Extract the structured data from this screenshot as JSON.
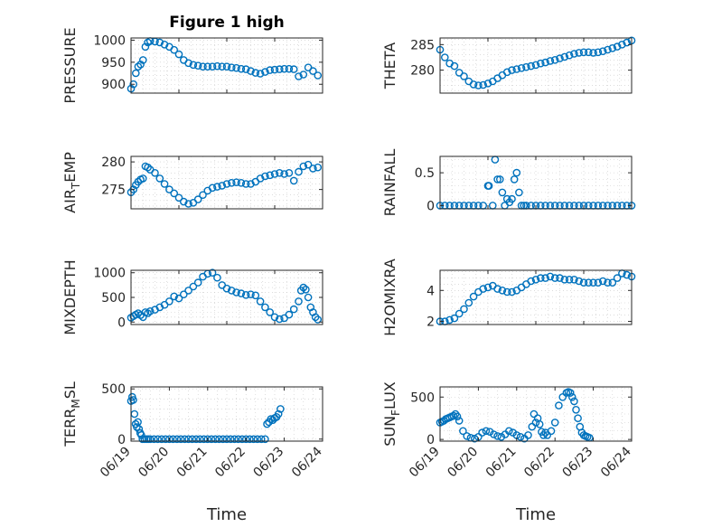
{
  "figure_title": "Figure 1 high",
  "colors": {
    "marker": "#0072BD",
    "axis": "#262626",
    "grid": "#c8c8c8"
  },
  "chart_data": [
    {
      "type": "scatter",
      "id": "pressure",
      "ylabel": "PRESSURE",
      "ylim": [
        880,
        1005
      ],
      "yticks": [
        900,
        950,
        1000
      ],
      "ytick_labels": [
        "900",
        "950",
        "1000"
      ],
      "xlim": [
        "06/19",
        "06/23"
      ],
      "xticks": [],
      "xlabel": "",
      "x": [
        19.0,
        19.05,
        19.1,
        19.15,
        19.2,
        19.25,
        19.3,
        19.35,
        19.4,
        19.5,
        19.6,
        19.7,
        19.8,
        19.9,
        20.0,
        20.1,
        20.2,
        20.3,
        20.4,
        20.5,
        20.6,
        20.7,
        20.8,
        20.9,
        21.0,
        21.1,
        21.2,
        21.3,
        21.4,
        21.5,
        21.6,
        21.7,
        21.8,
        21.9,
        22.0,
        22.1,
        22.2,
        22.3,
        22.4,
        22.5,
        22.6,
        22.7,
        22.8,
        22.9
      ],
      "y": [
        890,
        900,
        925,
        940,
        945,
        955,
        985,
        995,
        998,
        997,
        995,
        990,
        985,
        978,
        968,
        955,
        948,
        944,
        942,
        940,
        940,
        940,
        941,
        940,
        940,
        938,
        937,
        935,
        934,
        930,
        926,
        924,
        928,
        932,
        933,
        934,
        935,
        935,
        934,
        918,
        922,
        938,
        930,
        920
      ]
    },
    {
      "type": "scatter",
      "id": "theta",
      "ylabel": "THETA",
      "ylim": [
        275.5,
        286.3
      ],
      "yticks": [
        280,
        285
      ],
      "ytick_labels": [
        "280",
        "285"
      ],
      "xlim": [
        "06/19",
        "06/23"
      ],
      "xticks": [],
      "xlabel": "",
      "x": [
        19.0,
        19.1,
        19.2,
        19.3,
        19.4,
        19.5,
        19.6,
        19.7,
        19.8,
        19.9,
        20.0,
        20.1,
        20.2,
        20.3,
        20.4,
        20.5,
        20.6,
        20.7,
        20.8,
        20.9,
        21.0,
        21.1,
        21.2,
        21.3,
        21.4,
        21.5,
        21.6,
        21.7,
        21.8,
        21.9,
        22.0,
        22.1,
        22.2,
        22.3,
        22.4,
        22.5,
        22.6,
        22.7,
        22.8,
        22.9,
        23.0
      ],
      "y": [
        284,
        282.5,
        281.3,
        280.8,
        279.5,
        278.8,
        277.8,
        277.2,
        277,
        277.1,
        277.4,
        277.8,
        278.4,
        279,
        279.6,
        280,
        280.2,
        280.4,
        280.6,
        280.8,
        281,
        281.3,
        281.5,
        281.8,
        282,
        282.3,
        282.6,
        282.9,
        283.2,
        283.4,
        283.5,
        283.5,
        283.4,
        283.5,
        283.7,
        284,
        284.3,
        284.6,
        285,
        285.4,
        285.8
      ]
    },
    {
      "type": "scatter",
      "id": "air_temp",
      "ylabel": "AIR_TEMP",
      "ylim": [
        271.5,
        281
      ],
      "yticks": [
        275,
        280
      ],
      "ytick_labels": [
        "275",
        "280"
      ],
      "xlim": [
        "06/19",
        "06/23"
      ],
      "xticks": [],
      "xlabel": "",
      "x": [
        19.0,
        19.05,
        19.1,
        19.15,
        19.2,
        19.25,
        19.3,
        19.35,
        19.4,
        19.5,
        19.6,
        19.7,
        19.8,
        19.9,
        20.0,
        20.1,
        20.2,
        20.3,
        20.4,
        20.5,
        20.6,
        20.7,
        20.8,
        20.9,
        21.0,
        21.1,
        21.2,
        21.3,
        21.4,
        21.5,
        21.6,
        21.7,
        21.8,
        21.9,
        22.0,
        22.1,
        22.2,
        22.3,
        22.4,
        22.5,
        22.6,
        22.7,
        22.8,
        22.9
      ],
      "y": [
        274.5,
        275,
        275.8,
        276.4,
        276.8,
        277,
        279.2,
        279,
        278.6,
        278,
        277,
        276,
        275,
        274.3,
        273.5,
        272.8,
        272.4,
        272.6,
        273.2,
        274,
        274.8,
        275.3,
        275.5,
        275.7,
        276,
        276.2,
        276.3,
        276.2,
        276,
        276,
        276.4,
        277,
        277.4,
        277.6,
        277.8,
        278,
        277.8,
        278,
        276.6,
        278.2,
        279.2,
        279.5,
        278.8,
        279
      ]
    },
    {
      "type": "scatter",
      "id": "rainfall",
      "ylabel": "RAINFALL",
      "ylim": [
        -0.05,
        0.75
      ],
      "yticks": [
        0,
        0.5
      ],
      "ytick_labels": [
        "0",
        "0.5"
      ],
      "xlim": [
        "06/19",
        "06/23"
      ],
      "xticks": [],
      "xlabel": "",
      "x": [
        19.0,
        19.1,
        19.2,
        19.3,
        19.4,
        19.5,
        19.6,
        19.7,
        19.8,
        19.9,
        20.0,
        20.02,
        20.1,
        20.15,
        20.2,
        20.25,
        20.3,
        20.35,
        20.4,
        20.45,
        20.5,
        20.55,
        20.6,
        20.65,
        20.7,
        20.75,
        20.8,
        20.9,
        21.0,
        21.1,
        21.2,
        21.3,
        21.4,
        21.5,
        21.6,
        21.7,
        21.8,
        21.9,
        22.0,
        22.1,
        22.2,
        22.3,
        22.4,
        22.5,
        22.6,
        22.7,
        22.8,
        22.9,
        23.0
      ],
      "y": [
        0,
        0,
        0,
        0,
        0,
        0,
        0,
        0,
        0,
        0,
        0.3,
        0.3,
        0,
        0.7,
        0.4,
        0.4,
        0.2,
        0,
        0.1,
        0.05,
        0.1,
        0.4,
        0.5,
        0.2,
        0,
        0,
        0,
        0,
        0,
        0,
        0,
        0,
        0,
        0,
        0,
        0,
        0,
        0,
        0,
        0,
        0,
        0,
        0,
        0,
        0,
        0,
        0,
        0,
        0
      ]
    },
    {
      "type": "scatter",
      "id": "mixdepth",
      "ylabel": "MIXDEPTH",
      "ylim": [
        -50,
        1050
      ],
      "yticks": [
        0,
        500,
        1000
      ],
      "ytick_labels": [
        "0",
        "500",
        "1000"
      ],
      "xlim": [
        "06/19",
        "06/23"
      ],
      "xticks": [],
      "xlabel": "",
      "x": [
        19.0,
        19.05,
        19.1,
        19.15,
        19.2,
        19.25,
        19.3,
        19.35,
        19.4,
        19.5,
        19.6,
        19.7,
        19.8,
        19.9,
        20.0,
        20.1,
        20.2,
        20.3,
        20.4,
        20.5,
        20.6,
        20.7,
        20.8,
        20.9,
        21.0,
        21.1,
        21.2,
        21.3,
        21.4,
        21.5,
        21.6,
        21.7,
        21.8,
        21.9,
        22.0,
        22.1,
        22.2,
        22.3,
        22.4,
        22.5,
        22.55,
        22.6,
        22.65,
        22.7,
        22.75,
        22.8,
        22.85,
        22.9
      ],
      "y": [
        90,
        120,
        150,
        180,
        140,
        100,
        200,
        180,
        220,
        250,
        300,
        350,
        420,
        520,
        480,
        560,
        640,
        720,
        800,
        920,
        980,
        1000,
        900,
        750,
        680,
        640,
        600,
        580,
        550,
        560,
        540,
        420,
        300,
        200,
        100,
        60,
        80,
        150,
        260,
        420,
        640,
        700,
        660,
        500,
        300,
        200,
        100,
        50
      ]
    },
    {
      "type": "scatter",
      "id": "h2omixra",
      "ylabel": "H2OMIXRA",
      "ylim": [
        1.8,
        5.3
      ],
      "yticks": [
        2,
        4
      ],
      "ytick_labels": [
        "2",
        "4"
      ],
      "xlim": [
        "06/19",
        "06/23"
      ],
      "xticks": [],
      "xlabel": "",
      "x": [
        19.0,
        19.1,
        19.2,
        19.3,
        19.4,
        19.5,
        19.6,
        19.7,
        19.8,
        19.9,
        20.0,
        20.1,
        20.2,
        20.3,
        20.4,
        20.5,
        20.6,
        20.7,
        20.8,
        20.9,
        21.0,
        21.1,
        21.2,
        21.3,
        21.4,
        21.5,
        21.6,
        21.7,
        21.8,
        21.9,
        22.0,
        22.1,
        22.2,
        22.3,
        22.4,
        22.5,
        22.6,
        22.7,
        22.8,
        22.9,
        23.0
      ],
      "y": [
        2,
        2,
        2.1,
        2.2,
        2.5,
        2.8,
        3.2,
        3.6,
        3.9,
        4.1,
        4.2,
        4.3,
        4.1,
        4.0,
        3.9,
        3.9,
        4.0,
        4.2,
        4.4,
        4.6,
        4.7,
        4.8,
        4.8,
        4.9,
        4.8,
        4.8,
        4.7,
        4.7,
        4.7,
        4.6,
        4.5,
        4.5,
        4.5,
        4.5,
        4.6,
        4.5,
        4.5,
        4.8,
        5.1,
        5.0,
        4.9
      ]
    },
    {
      "type": "scatter",
      "id": "terr_msl",
      "ylabel": "TERR_MSL",
      "ylim": [
        -20,
        520
      ],
      "yticks": [
        0,
        500
      ],
      "ytick_labels": [
        "0",
        "500"
      ],
      "xlim": [
        "06/19",
        "06/24"
      ],
      "xticks": [
        "06/19",
        "06/20",
        "06/21",
        "06/22",
        "06/23",
        "06/24"
      ],
      "xlabel": "Time",
      "x": [
        19.0,
        19.03,
        19.06,
        19.09,
        19.12,
        19.15,
        19.18,
        19.21,
        19.24,
        19.27,
        19.3,
        19.35,
        19.4,
        19.45,
        19.5,
        19.6,
        19.7,
        19.8,
        19.9,
        20.0,
        20.1,
        20.2,
        20.3,
        20.4,
        20.5,
        20.6,
        20.7,
        20.8,
        20.9,
        21.0,
        21.1,
        21.2,
        21.3,
        21.4,
        21.5,
        21.6,
        21.7,
        21.8,
        21.9,
        22.0,
        22.1,
        22.2,
        22.3,
        22.4,
        22.5,
        22.55,
        22.6,
        22.65,
        22.7,
        22.75,
        22.8,
        22.85,
        22.9
      ],
      "y": [
        380,
        420,
        390,
        250,
        150,
        120,
        170,
        100,
        60,
        40,
        0,
        0,
        0,
        0,
        0,
        0,
        0,
        0,
        0,
        0,
        0,
        0,
        0,
        0,
        0,
        0,
        0,
        0,
        0,
        0,
        0,
        0,
        0,
        0,
        0,
        0,
        0,
        0,
        0,
        0,
        0,
        0,
        0,
        0,
        0,
        150,
        170,
        200,
        190,
        210,
        220,
        250,
        300
      ]
    },
    {
      "type": "scatter",
      "id": "sun_flux",
      "ylabel": "SUN_FLUX",
      "ylim": [
        -20,
        620
      ],
      "yticks": [
        0,
        500
      ],
      "ytick_labels": [
        "0",
        "500"
      ],
      "xlim": [
        "06/19",
        "06/24"
      ],
      "xticks": [
        "06/19",
        "06/20",
        "06/21",
        "06/22",
        "06/23",
        "06/24"
      ],
      "xlabel": "Time",
      "x": [
        19.0,
        19.05,
        19.1,
        19.15,
        19.2,
        19.25,
        19.3,
        19.35,
        19.4,
        19.45,
        19.5,
        19.6,
        19.7,
        19.8,
        19.9,
        20.0,
        20.1,
        20.2,
        20.3,
        20.4,
        20.5,
        20.6,
        20.7,
        20.8,
        20.9,
        21.0,
        21.1,
        21.2,
        21.3,
        21.4,
        21.45,
        21.5,
        21.55,
        21.6,
        21.65,
        21.7,
        21.75,
        21.8,
        21.9,
        22.0,
        22.1,
        22.2,
        22.3,
        22.35,
        22.4,
        22.45,
        22.5,
        22.55,
        22.6,
        22.65,
        22.7,
        22.75,
        22.8,
        22.85,
        22.9
      ],
      "y": [
        200,
        210,
        220,
        240,
        250,
        260,
        270,
        280,
        300,
        270,
        220,
        100,
        40,
        20,
        10,
        30,
        80,
        100,
        90,
        60,
        40,
        30,
        60,
        100,
        80,
        50,
        30,
        10,
        50,
        150,
        300,
        200,
        250,
        180,
        90,
        50,
        80,
        50,
        100,
        200,
        400,
        500,
        550,
        560,
        550,
        500,
        450,
        350,
        250,
        150,
        80,
        50,
        40,
        30,
        20
      ]
    }
  ]
}
